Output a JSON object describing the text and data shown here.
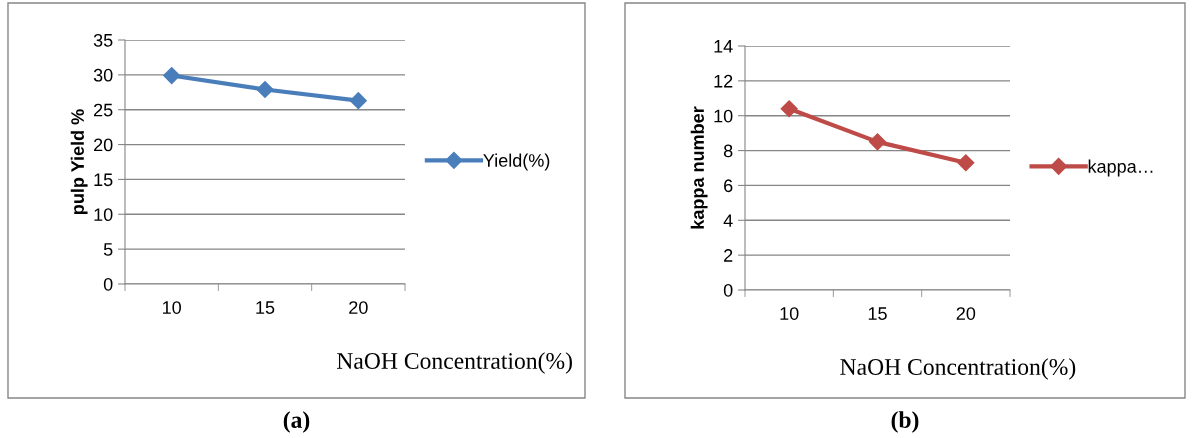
{
  "chart_data": [
    {
      "type": "line",
      "categories": [
        "10",
        "15",
        "20"
      ],
      "xlabel": "NaOH Concentration(%)",
      "ylabel": "pulp Yield %",
      "series": [
        {
          "name": "Yield(%)",
          "color": "#4a7ebb",
          "values": [
            29.9,
            27.9,
            26.3
          ]
        }
      ],
      "ylim": [
        0,
        35
      ],
      "yticks": [
        0,
        5,
        10,
        15,
        20,
        25,
        30,
        35
      ],
      "grid": "y",
      "legend": "right",
      "marker": "diamond",
      "line_style": "solid",
      "annotations": [
        "(a)"
      ]
    },
    {
      "type": "line",
      "categories": [
        "10",
        "15",
        "20"
      ],
      "xlabel": "NaOH Concentration(%)",
      "ylabel": "kappa number",
      "series": [
        {
          "name": "kappa…",
          "color": "#be4b48",
          "values": [
            10.4,
            8.5,
            7.3
          ]
        }
      ],
      "ylim": [
        0,
        14
      ],
      "yticks": [
        0,
        2,
        4,
        6,
        8,
        10,
        12,
        14
      ],
      "grid": "y",
      "legend": "right",
      "marker": "diamond",
      "line_style": "solid",
      "annotations": [
        "(b)"
      ]
    }
  ]
}
